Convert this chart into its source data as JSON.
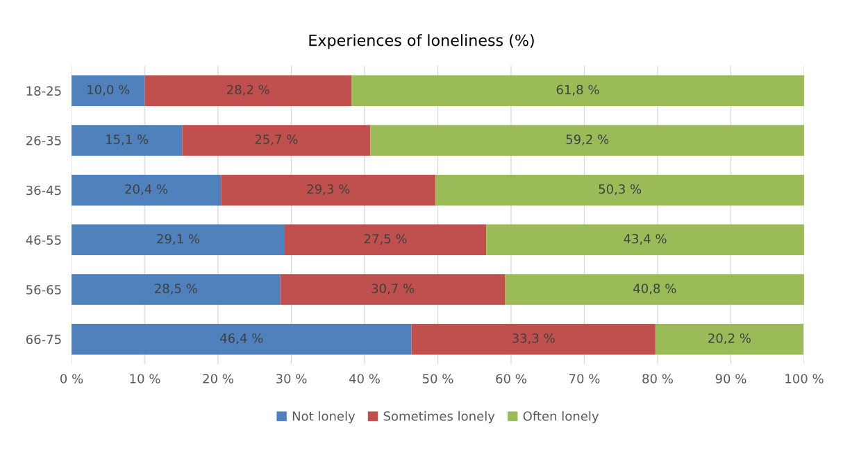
{
  "chart_data": {
    "type": "bar",
    "orientation": "horizontal",
    "stacked": true,
    "title": "Experiences of loneliness (%)",
    "categories": [
      "18-25",
      "26-35",
      "36-45",
      "46-55",
      "56-65",
      "66-75"
    ],
    "series": [
      {
        "name": "Not lonely",
        "color": "#4f81bd",
        "values": [
          10.0,
          15.1,
          20.4,
          29.1,
          28.5,
          46.4
        ],
        "value_labels": [
          "10,0 %",
          "15,1 %",
          "20,4 %",
          "29,1 %",
          "28,5 %",
          "46,4 %"
        ]
      },
      {
        "name": "Sometimes lonely",
        "color": "#c0504d",
        "values": [
          28.2,
          25.7,
          29.3,
          27.5,
          30.7,
          33.3
        ],
        "value_labels": [
          "28,2 %",
          "25,7 %",
          "29,3 %",
          "27,5 %",
          "30,7 %",
          "33,3 %"
        ]
      },
      {
        "name": "Often lonely",
        "color": "#9bbb59",
        "values": [
          61.8,
          59.2,
          50.3,
          43.4,
          40.8,
          20.2
        ],
        "value_labels": [
          "61,8 %",
          "59,2 %",
          "50,3 %",
          "43,4 %",
          "40,8 %",
          "20,2 %"
        ]
      }
    ],
    "xlim": [
      0,
      100
    ],
    "xticks": [
      {
        "value": 0,
        "label": "0 %"
      },
      {
        "value": 10,
        "label": "10 %"
      },
      {
        "value": 20,
        "label": "20 %"
      },
      {
        "value": 30,
        "label": "30 %"
      },
      {
        "value": 40,
        "label": "40 %"
      },
      {
        "value": 50,
        "label": "50 %"
      },
      {
        "value": 60,
        "label": "60 %"
      },
      {
        "value": 70,
        "label": "70 %"
      },
      {
        "value": 80,
        "label": "80 %"
      },
      {
        "value": 90,
        "label": "90 %"
      },
      {
        "value": 100,
        "label": "100 %"
      }
    ],
    "grid": "x",
    "legend": "bottom"
  }
}
